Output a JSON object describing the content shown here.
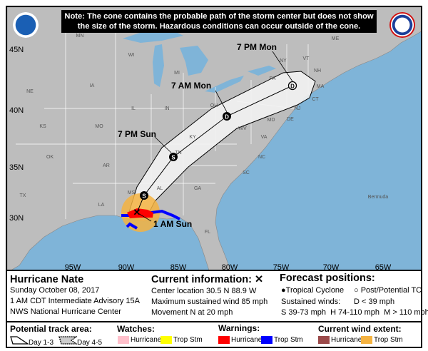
{
  "note": "Note: The cone contains the probable path of the storm center but does not show the size of the storm. Hazardous conditions can occur outside of the cone.",
  "logos": {
    "left": "NOAA",
    "right": "NATIONAL WEATHER SERVICE"
  },
  "map": {
    "lat_labels": [
      "45N",
      "40N",
      "35N",
      "30N"
    ],
    "lon_labels": [
      "95W",
      "90W",
      "85W",
      "80W",
      "75W",
      "70W",
      "65W"
    ],
    "time_labels": [
      "7 PM Mon",
      "7 AM Mon",
      "7 PM Sun",
      "1 AM Sun"
    ],
    "forecast_points": [
      {
        "time": "1 AM Sun",
        "symbol": "S"
      },
      {
        "time": "7 PM Sun",
        "symbol": "S"
      },
      {
        "time": "7 AM Mon",
        "symbol": "D"
      },
      {
        "time": "7 PM Mon",
        "symbol": "D"
      }
    ],
    "states": [
      "MN",
      "WI",
      "MI",
      "IA",
      "IL",
      "IN",
      "OH",
      "NE",
      "KS",
      "MO",
      "KY",
      "WV",
      "VA",
      "PA",
      "NY",
      "VT",
      "NH",
      "ME",
      "MA",
      "CT",
      "NJ",
      "MD",
      "DE",
      "NC",
      "TN",
      "OK",
      "AR",
      "SC",
      "MS",
      "AL",
      "GA",
      "TX",
      "LA",
      "FL"
    ],
    "places": [
      "Bermuda"
    ],
    "colors": {
      "land": "#bdbdbd",
      "water": "#7fb4d8",
      "cone": "#f2f2f2",
      "hurricane_warning": "#ff0000",
      "trop_stm_warning": "#0000ff",
      "trop_stm_wind": "#f5b341"
    }
  },
  "info": {
    "storm_name": "Hurricane Nate",
    "date": "Sunday October 08, 2017",
    "advisory": "1 AM CDT Intermediate Advisory 15A",
    "center": "NWS National Hurricane Center",
    "current_title": "Current information: ✕",
    "location": "Center location 30.5 N 88.9 W",
    "max_wind": "Maximum sustained wind 85 mph",
    "movement": "Movement N at 20 mph",
    "forecast_title": "Forecast positions:",
    "tropical_cyclone": "Tropical Cyclone",
    "post_potential": "Post/Potential TC",
    "sustained_winds": "Sustained winds:",
    "d_range": "D < 39 mph",
    "shm_ranges": "S 39-73 mph  H 74-110 mph  M > 110 mph"
  },
  "legend": {
    "track_title": "Potential track area:",
    "day13": "Day 1-3",
    "day45": "Day 4-5",
    "watches_title": "Watches:",
    "warnings_title": "Warnings:",
    "wind_title": "Current wind extent:",
    "hurricane": "Hurricane",
    "trop_stm": "Trop Stm",
    "colors": {
      "hurricane_watch": "#ffc0cb",
      "trop_stm_watch": "#ffff00",
      "hurricane_warning": "#ff0000",
      "trop_stm_warning": "#0000ff",
      "hurricane_wind": "#9b4a4a",
      "trop_stm_wind": "#f5b341"
    }
  }
}
